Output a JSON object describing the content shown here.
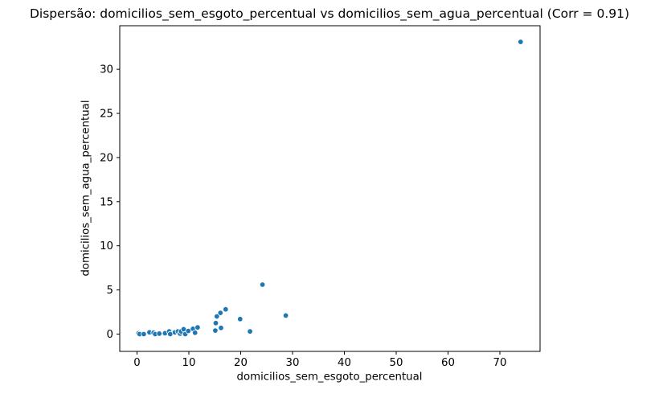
{
  "chart_data": {
    "type": "scatter",
    "title": "Dispersão: domicilios_sem_esgoto_percentual vs domicilios_sem_agua_percentual (Corr = 0.91)",
    "xlabel": "domicilios_sem_esgoto_percentual",
    "ylabel": "domicilios_sem_agua_percentual",
    "correlation": 0.91,
    "xlim": [
      -3.33,
      77.75
    ],
    "ylim": [
      -1.96,
      34.93
    ],
    "x_ticks": [
      0,
      10,
      20,
      30,
      40,
      50,
      60,
      70
    ],
    "y_ticks": [
      0,
      5,
      10,
      15,
      20,
      25,
      30
    ],
    "grid": false,
    "legend_position": "none",
    "marker_color": "#1f77b4",
    "marker_edge_color": "#ffffff",
    "spine_color": "#000000",
    "background_color": "#ffffff",
    "points": [
      [
        0.3,
        0.1
      ],
      [
        0.5,
        0.0
      ],
      [
        1.3,
        0.0
      ],
      [
        2.4,
        0.2
      ],
      [
        3.2,
        0.15
      ],
      [
        3.5,
        0.0
      ],
      [
        4.3,
        0.05
      ],
      [
        5.4,
        0.1
      ],
      [
        6.2,
        0.3
      ],
      [
        6.4,
        0.0
      ],
      [
        7.3,
        0.2
      ],
      [
        7.9,
        0.3
      ],
      [
        8.3,
        0.05
      ],
      [
        8.5,
        0.3
      ],
      [
        9.0,
        0.55
      ],
      [
        9.3,
        0.0
      ],
      [
        9.9,
        0.35
      ],
      [
        10.8,
        0.6
      ],
      [
        11.2,
        0.15
      ],
      [
        11.7,
        0.75
      ],
      [
        15.1,
        0.4
      ],
      [
        15.2,
        1.25
      ],
      [
        15.4,
        2.0
      ],
      [
        16.1,
        2.4
      ],
      [
        16.2,
        0.7
      ],
      [
        17.1,
        2.8
      ],
      [
        19.9,
        1.7
      ],
      [
        21.8,
        0.3
      ],
      [
        24.2,
        5.6
      ],
      [
        28.7,
        2.1
      ],
      [
        74.0,
        33.1
      ]
    ]
  }
}
